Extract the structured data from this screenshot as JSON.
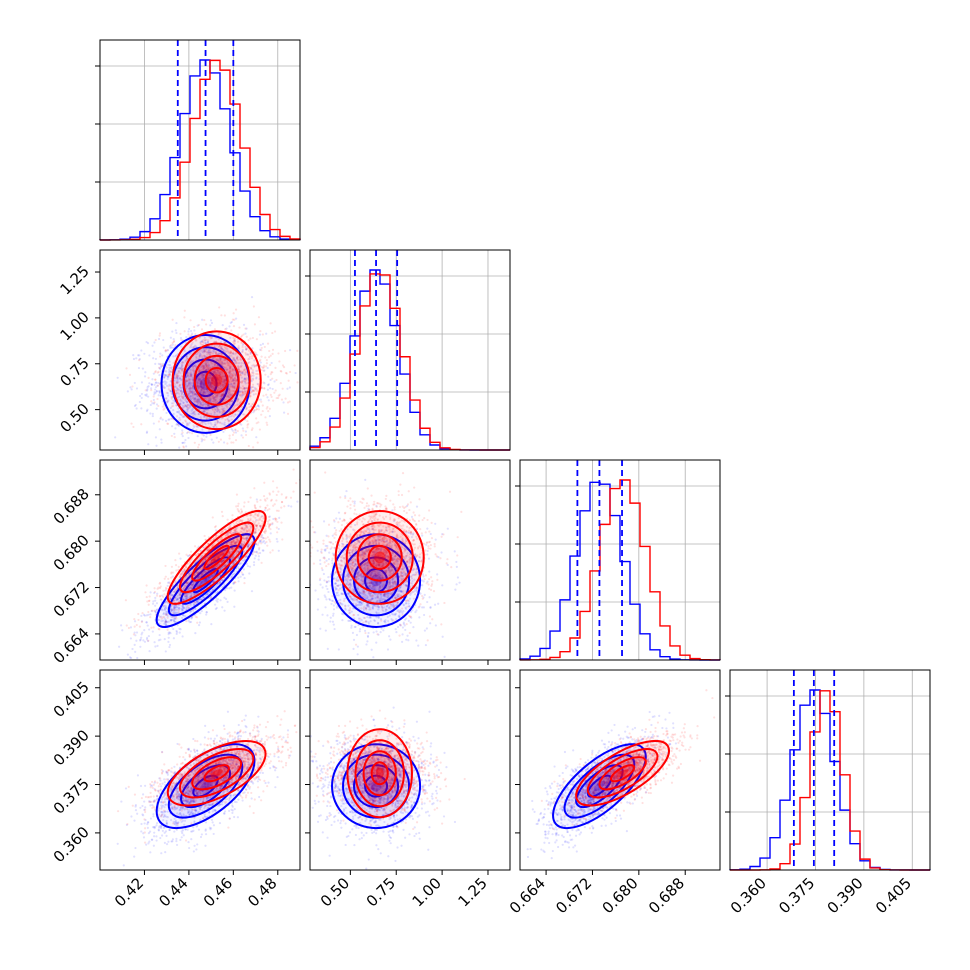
{
  "chart_data": {
    "type": "corner",
    "description_free": true,
    "parameters": [
      {
        "ticks": [
          0.42,
          0.44,
          0.46,
          0.48
        ],
        "tick_labels": [
          "0.42",
          "0.44",
          "0.46",
          "0.48"
        ],
        "range": [
          0.4,
          0.49
        ]
      },
      {
        "ticks": [
          0.5,
          0.75,
          1.0,
          1.25
        ],
        "tick_labels": [
          "0.50",
          "0.75",
          "1.00",
          "1.25"
        ],
        "range": [
          0.28,
          1.37
        ]
      },
      {
        "ticks": [
          0.664,
          0.672,
          0.68,
          0.688
        ],
        "tick_labels": [
          "0.664",
          "0.672",
          "0.680",
          "0.688"
        ],
        "range": [
          0.6595,
          0.694
        ]
      },
      {
        "ticks": [
          0.36,
          0.375,
          0.39,
          0.405
        ],
        "tick_labels": [
          "0.360",
          "0.375",
          "0.390",
          "0.405"
        ],
        "range": [
          0.3485,
          0.4105
        ]
      }
    ],
    "series": [
      {
        "color": "#0000ff",
        "means": [
          0.4475,
          0.64,
          0.6732,
          0.3745
        ],
        "sds": [
          0.011,
          0.12,
          0.004,
          0.0065
        ]
      },
      {
        "color": "#ff0000",
        "means": [
          0.4525,
          0.66,
          0.6772,
          0.3785
        ],
        "sds": [
          0.011,
          0.12,
          0.004,
          0.005
        ]
      }
    ],
    "correlations": {
      "0-1": 0.0,
      "0-2": 0.85,
      "0-3": 0.6,
      "1-2": 0.0,
      "1-3": 0.0,
      "2-3": 0.7
    },
    "quantile_lines": {
      "color": "#0000ff",
      "values": [
        [
          0.435,
          0.4475,
          0.46
        ],
        [
          0.525,
          0.64,
          0.755
        ],
        [
          0.6694,
          0.6732,
          0.6771
        ],
        [
          0.3683,
          0.3745,
          0.3808
        ]
      ]
    },
    "grid": true,
    "hist_peak_density": [
      [
        0.15,
        0.37,
        0.82,
        1.0,
        0.86,
        0.45,
        0.25,
        0.07,
        0.02
      ],
      [
        0.07,
        0.58,
        1.0,
        0.58,
        0.15,
        0.05,
        0.02,
        0.01
      ]
    ]
  }
}
